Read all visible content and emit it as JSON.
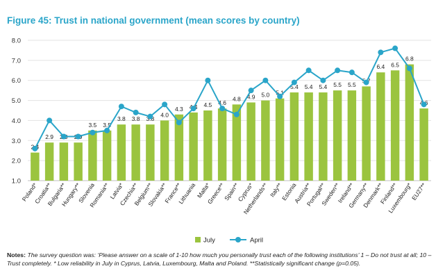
{
  "figure": {
    "title": "Figure 45: Trust in national government (mean scores by country)",
    "notes_label": "Notes:",
    "notes_text": "The survey question was: ‘Please answer on a scale of 1-10 how much you personally trust each of the following institutions’ 1 – Do not trust at all; 10 – Trust completely. * Low reliability in July in Cyprus, Latvia, Luxembourg, Malta and Poland. **Statistically significant change (p=0.05)."
  },
  "chart_data": {
    "type": "bar",
    "title": "Figure 45: Trust in national government (mean scores by country)",
    "xlabel": "",
    "ylabel": "",
    "ylim": [
      1.0,
      8.0
    ],
    "yticks": [
      "1.0",
      "2.0",
      "3.0",
      "4.0",
      "5.0",
      "6.0",
      "7.0",
      "8.0"
    ],
    "grid": true,
    "legend_position": "bottom",
    "categories": [
      "Poland*",
      "Croatia**",
      "Bulgaria**",
      "Hungary**",
      "Slovenia",
      "Romania**",
      "Latvia*",
      "Czechia**",
      "Belgium**",
      "Slovakia**",
      "France**",
      "Lithuania",
      "Malta*",
      "Greece**",
      "Spain**",
      "Cyprus*",
      "Netherlands**",
      "Italy**",
      "Estonia",
      "Austria**",
      "Portugal**",
      "Sweden**",
      "Ireland**",
      "Germany**",
      "Denmark**",
      "Finland**",
      "Luxembourg*",
      "EU27**"
    ],
    "series": [
      {
        "name": "July",
        "mark": "bar",
        "color": "#9bc43f",
        "values": [
          2.4,
          2.9,
          2.9,
          2.9,
          3.5,
          3.5,
          3.8,
          3.8,
          3.8,
          4.0,
          4.3,
          4.4,
          4.5,
          4.6,
          4.8,
          4.9,
          5.0,
          5.1,
          5.4,
          5.4,
          5.4,
          5.5,
          5.5,
          5.7,
          6.4,
          6.5,
          6.8,
          4.6
        ],
        "labels": [
          "2.4",
          "2.9",
          "2.9",
          "2.9",
          "3.5",
          "3.5",
          "3.8",
          "3.8",
          "3.8",
          "4.0",
          "4.3",
          "4.4",
          "4.5",
          "4.6",
          "4.8",
          "4.9",
          "5.0",
          "5.1",
          "5.4",
          "5.4",
          "5.4",
          "5.5",
          "5.5",
          "5.7",
          "6.4",
          "6.5",
          "6.8",
          "4.6"
        ]
      },
      {
        "name": "April",
        "mark": "line",
        "color": "#2aa5c9",
        "values": [
          2.6,
          4.0,
          3.2,
          3.2,
          3.4,
          3.5,
          4.7,
          4.4,
          4.2,
          4.8,
          3.9,
          4.6,
          6.0,
          4.6,
          4.3,
          5.5,
          6.0,
          5.2,
          5.9,
          6.5,
          6.0,
          6.5,
          6.4,
          5.9,
          7.4,
          7.6,
          6.6,
          4.8
        ]
      }
    ]
  }
}
